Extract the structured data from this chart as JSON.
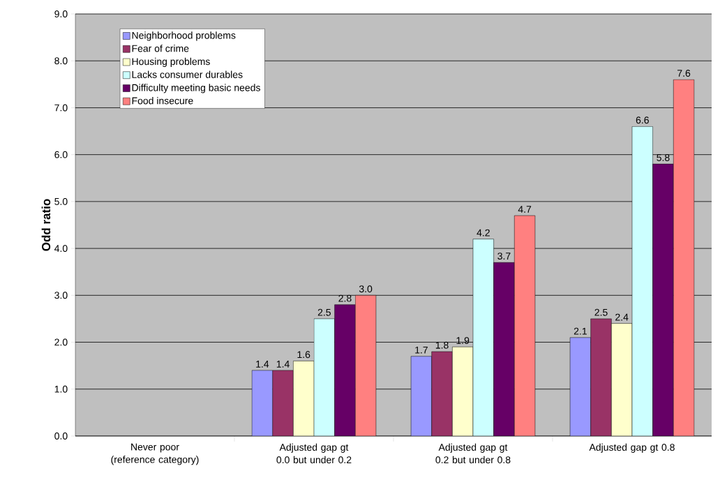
{
  "chart_data": {
    "type": "bar",
    "ylabel": "Odd ratio",
    "categories": [
      "Never poor (reference category)",
      "Adjusted gap gt 0.0 but under 0.2",
      "Adjusted gap gt 0.2 but under 0.8",
      "Adjusted gap gt 0.8"
    ],
    "series": [
      {
        "name": "Neighborhood problems",
        "color": "#9999ff",
        "values": [
          null,
          1.4,
          1.7,
          2.1
        ]
      },
      {
        "name": "Fear of crime",
        "color": "#993366",
        "values": [
          null,
          1.4,
          1.8,
          2.5
        ]
      },
      {
        "name": "Housing problems",
        "color": "#ffffcc",
        "values": [
          null,
          1.6,
          1.9,
          2.4
        ]
      },
      {
        "name": "Lacks consumer durables",
        "color": "#ccffff",
        "values": [
          null,
          2.5,
          4.2,
          6.6
        ]
      },
      {
        "name": "Difficulty meeting basic needs",
        "color": "#660066",
        "values": [
          null,
          2.8,
          3.7,
          5.8
        ]
      },
      {
        "name": "Food insecure",
        "color": "#ff8080",
        "values": [
          null,
          3.0,
          4.7,
          7.6
        ],
        "value_labels": [
          null,
          "3.0",
          "4.7",
          "7.6"
        ]
      }
    ],
    "ylim": [
      0,
      9
    ],
    "yticks": [
      {
        "value": 0,
        "label": "0.0"
      },
      {
        "value": 1,
        "label": "1.0"
      },
      {
        "value": 2,
        "label": "2.0"
      },
      {
        "value": 3,
        "label": "3.0"
      },
      {
        "value": 4,
        "label": "4.0"
      },
      {
        "value": 5,
        "label": "5.0"
      },
      {
        "value": 6,
        "label": "6.0"
      },
      {
        "value": 7,
        "label": "7.0"
      },
      {
        "value": 8,
        "label": "8.0"
      },
      {
        "value": 9,
        "label": "9.0"
      }
    ],
    "grid": "y",
    "legend": "top left",
    "data_labels": true
  }
}
